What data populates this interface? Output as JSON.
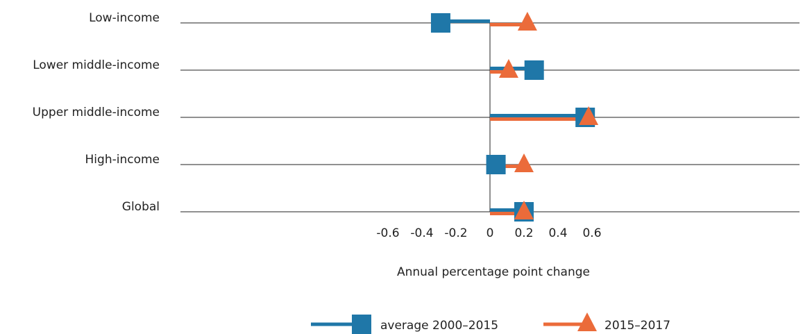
{
  "chart_data": {
    "type": "dumbbell",
    "xlabel": "Annual percentage point change",
    "xlim": [
      -0.6,
      0.6
    ],
    "xticks": [
      "-0.6",
      "-0.4",
      "-0.2",
      "0",
      "0.2",
      "0.4",
      "0.6"
    ],
    "tick_values": [
      -0.6,
      -0.4,
      -0.2,
      0,
      0.2,
      0.4,
      0.6
    ],
    "categories": [
      "Low-income",
      "Lower middle-income",
      "Upper middle-income",
      "High-income",
      "Global"
    ],
    "series": [
      {
        "name": "average 2000–2015",
        "marker": "square",
        "color": "#1f77a8",
        "values": [
          -0.29,
          0.26,
          0.56,
          0.035,
          0.2
        ]
      },
      {
        "name": "2015–2017",
        "marker": "triangle",
        "color": "#eb6b3a",
        "values": [
          0.22,
          0.11,
          0.58,
          0.2,
          0.2
        ]
      }
    ],
    "legend_position": "bottom"
  }
}
